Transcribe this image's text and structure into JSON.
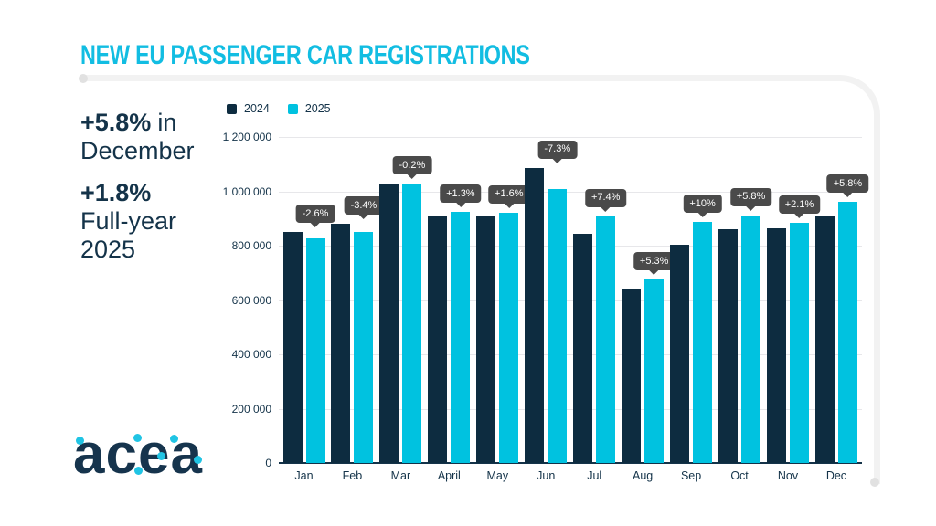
{
  "header": {
    "title": "NEW EU PASSENGER CAR REGISTRATIONS"
  },
  "highlights": [
    {
      "value": "+5.8%",
      "rest": "in",
      "line2": "December"
    },
    {
      "value": "+1.8%",
      "line2": "Full-year",
      "line3": "2025"
    }
  ],
  "logo": {
    "text": "acea"
  },
  "colors": {
    "accent_cyan": "#12bde2",
    "navy": "#143349",
    "bar_2024": "#0d2c40",
    "bar_2025": "#00c2e0",
    "tooltip_bg": "#4a4a4a",
    "tooltip_text": "#ffffff",
    "gridline": "#e7e7ea",
    "frame": "#f2f2f2"
  },
  "chart_data": {
    "type": "bar",
    "title": "NEW EU PASSENGER CAR REGISTRATIONS",
    "categories": [
      "Jan",
      "Feb",
      "Mar",
      "April",
      "May",
      "Jun",
      "Jul",
      "Aug",
      "Sep",
      "Oct",
      "Nov",
      "Dec"
    ],
    "series": [
      {
        "name": "2024",
        "color": "#0d2c40",
        "values": [
          850000,
          880000,
          1028000,
          912000,
          908000,
          1086000,
          845000,
          640000,
          805000,
          862000,
          865000,
          908000
        ]
      },
      {
        "name": "2025",
        "color": "#00c2e0",
        "values": [
          828000,
          850000,
          1026000,
          924000,
          922000,
          1007000,
          908000,
          674000,
          886000,
          912000,
          883000,
          961000
        ]
      }
    ],
    "change_labels": [
      "-2.6%",
      "-3.4%",
      "-0.2%",
      "+1.3%",
      "+1.6%",
      "-7.3%",
      "+7.4%",
      "+5.3%",
      "+10%",
      "+5.8%",
      "+2.1%",
      "+5.8%"
    ],
    "ylim": [
      0,
      1200000
    ],
    "ytick_step": 200000,
    "ytick_labels": [
      "0",
      "200 000",
      "400 000",
      "600 000",
      "800 000",
      "1 000 000",
      "1 200 000"
    ],
    "legend_position": "top-left",
    "grid": "horizontal"
  }
}
